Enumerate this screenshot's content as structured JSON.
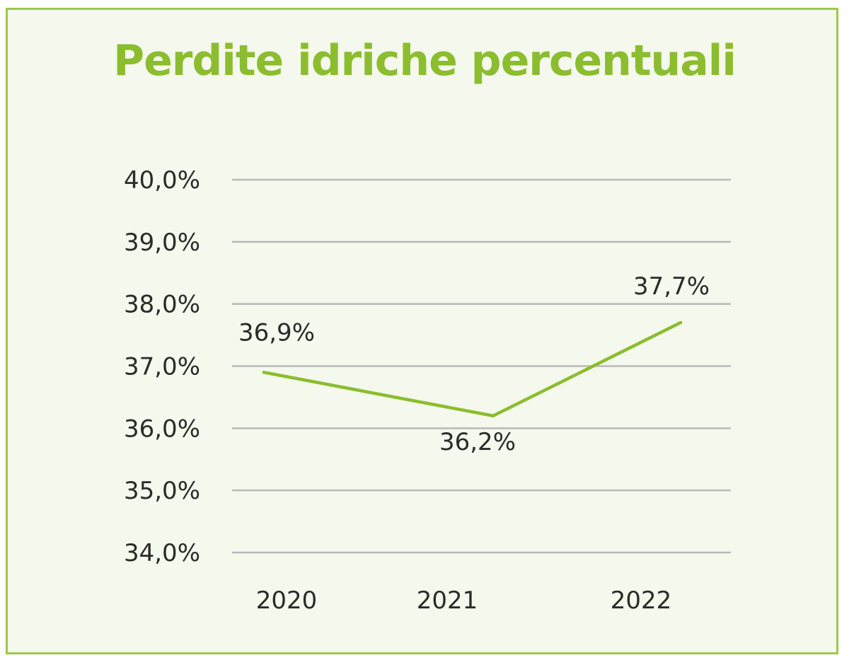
{
  "chart_data": {
    "type": "line",
    "title": "Perdite idriche percentuali",
    "xlabel": "",
    "ylabel": "",
    "categories": [
      "2020",
      "2021",
      "2022"
    ],
    "series": [
      {
        "values": [
          36.9,
          36.2,
          37.7
        ],
        "labels": [
          "36,9%",
          "36,2%",
          "37,7%"
        ],
        "color": "#8bbd2f"
      }
    ],
    "ylim": [
      34.0,
      40.0
    ],
    "yticks": [
      {
        "value": 40.0,
        "label": "40,0%"
      },
      {
        "value": 39.0,
        "label": "39,0%"
      },
      {
        "value": 38.0,
        "label": "38,0%"
      },
      {
        "value": 37.0,
        "label": "37,0%"
      },
      {
        "value": 36.0,
        "label": "36,0%"
      },
      {
        "value": 35.0,
        "label": "35,0%"
      },
      {
        "value": 34.0,
        "label": "34,0%"
      }
    ],
    "grid": true,
    "legend": "none"
  },
  "colors": {
    "background": "#f5f8ec",
    "border": "#9cc84a",
    "title": "#8bbd2f",
    "line": "#8bbd2f",
    "gridline": "#b9b9b9",
    "text": "#2b2b2b"
  }
}
